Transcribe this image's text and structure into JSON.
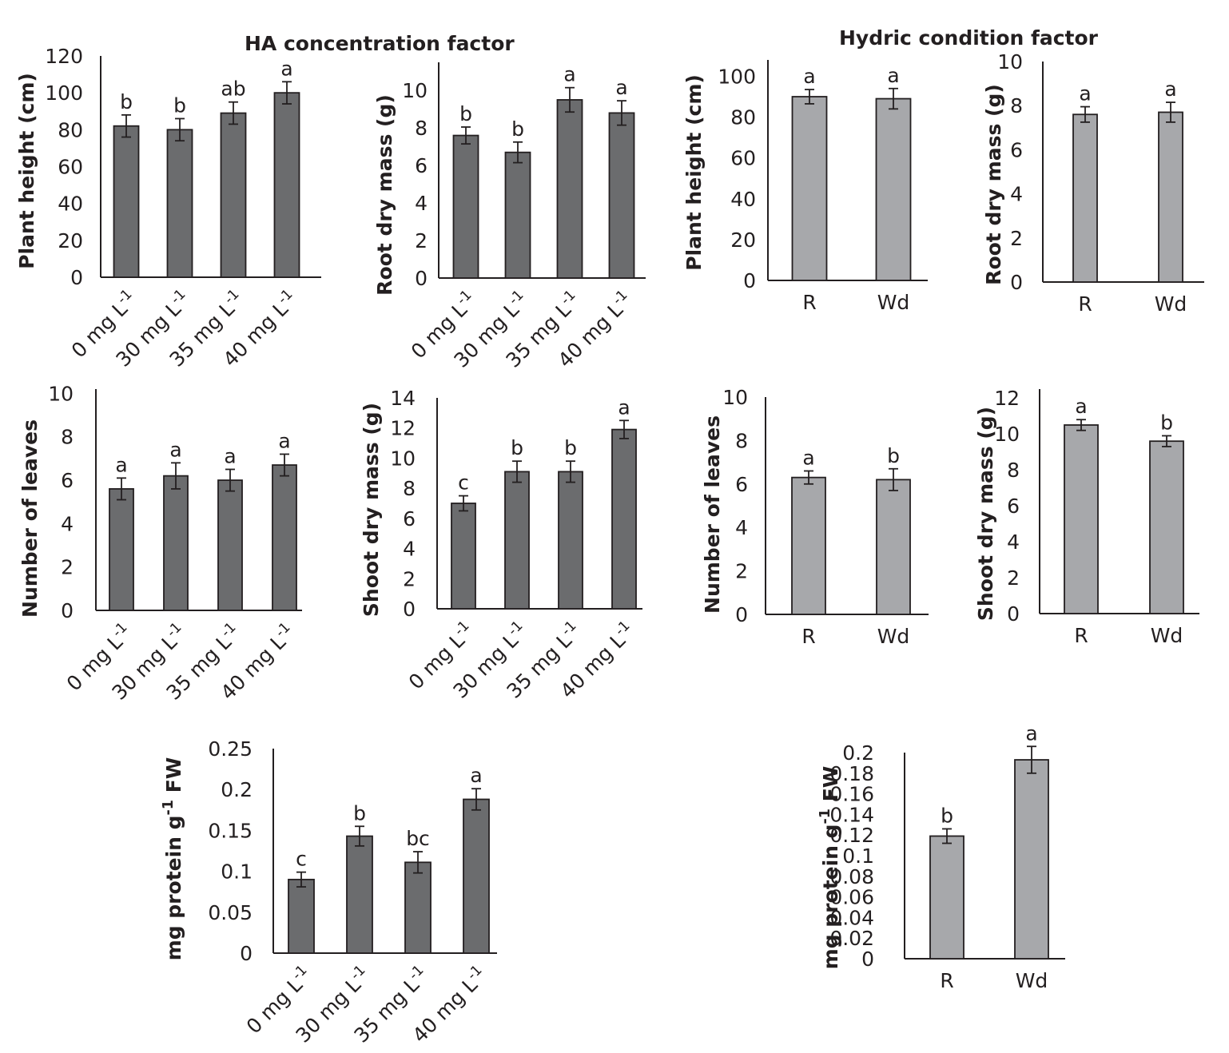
{
  "titles": {
    "ha": "HA concentration factor",
    "hydric": "Hydric condition factor"
  },
  "colors": {
    "ha_bar": "#6b6c6e",
    "hydric_bar": "#a7a8ab",
    "axis": "#231f20",
    "text": "#231f20"
  },
  "chart_data": [
    {
      "id": "ha-plant-height",
      "type": "bar",
      "group": "ha",
      "title": "",
      "ylabel": "Plant height (cm)",
      "xlabel": "",
      "categories": [
        "0 mg L^-1",
        "30 mg L^-1",
        "35 mg L^-1",
        "40 mg L^-1"
      ],
      "values": [
        82,
        80,
        89,
        100
      ],
      "errors": [
        6,
        6,
        6,
        6
      ],
      "letters": [
        "b",
        "b",
        "ab",
        "a"
      ],
      "ylim": [
        0,
        120
      ],
      "yticks": [
        0,
        20,
        40,
        60,
        80,
        100,
        120
      ]
    },
    {
      "id": "ha-root-dry-mass",
      "type": "bar",
      "group": "ha",
      "title": "",
      "ylabel": "Root dry mass (g)",
      "xlabel": "",
      "categories": [
        "0 mg L^-1",
        "30 mg L^-1",
        "35 mg L^-1",
        "40 mg L^-1"
      ],
      "values": [
        7.6,
        6.7,
        9.5,
        8.8
      ],
      "errors": [
        0.45,
        0.55,
        0.65,
        0.65
      ],
      "letters": [
        "b",
        "b",
        "a",
        "a"
      ],
      "ylim": [
        0,
        11.5
      ],
      "yticks": [
        0,
        2,
        4,
        6,
        8,
        10
      ]
    },
    {
      "id": "hydric-plant-height",
      "type": "bar",
      "group": "hydric",
      "title": "",
      "ylabel": "Plant height (cm)",
      "xlabel": "",
      "categories": [
        "R",
        "Wd"
      ],
      "values": [
        90,
        89
      ],
      "errors": [
        3.5,
        5
      ],
      "letters": [
        "a",
        "a"
      ],
      "ylim": [
        0,
        108
      ],
      "yticks": [
        0,
        20,
        40,
        60,
        80,
        100
      ]
    },
    {
      "id": "hydric-root-dry-mass",
      "type": "bar",
      "group": "hydric",
      "title": "",
      "ylabel": "Root dry mass (g)",
      "xlabel": "",
      "categories": [
        "R",
        "Wd"
      ],
      "values": [
        7.6,
        7.7
      ],
      "errors": [
        0.35,
        0.45
      ],
      "letters": [
        "a",
        "a"
      ],
      "ylim": [
        0,
        10
      ],
      "yticks": [
        0,
        2,
        4,
        6,
        8,
        10
      ]
    },
    {
      "id": "ha-number-of-leaves",
      "type": "bar",
      "group": "ha",
      "title": "",
      "ylabel": "Number of leaves",
      "xlabel": "",
      "categories": [
        "0 mg L^-1",
        "30 mg L^-1",
        "35 mg L^-1",
        "40 mg L^-1"
      ],
      "values": [
        5.6,
        6.2,
        6.0,
        6.7
      ],
      "errors": [
        0.5,
        0.6,
        0.5,
        0.5
      ],
      "letters": [
        "a",
        "a",
        "a",
        "a"
      ],
      "ylim": [
        0,
        10.2
      ],
      "yticks": [
        0,
        2,
        4,
        6,
        8,
        10
      ]
    },
    {
      "id": "ha-shoot-dry-mass",
      "type": "bar",
      "group": "ha",
      "title": "",
      "ylabel": "Shoot dry mass (g)",
      "xlabel": "",
      "categories": [
        "0 mg L^-1",
        "30 mg L^-1",
        "35 mg L^-1",
        "40 mg L^-1"
      ],
      "values": [
        7.0,
        9.1,
        9.1,
        11.9
      ],
      "errors": [
        0.5,
        0.7,
        0.7,
        0.6
      ],
      "letters": [
        "c",
        "b",
        "b",
        "a"
      ],
      "ylim": [
        0,
        14
      ],
      "yticks": [
        0,
        2,
        4,
        6,
        8,
        10,
        12,
        14
      ]
    },
    {
      "id": "hydric-number-of-leaves",
      "type": "bar",
      "group": "hydric",
      "title": "",
      "ylabel": "Number of leaves",
      "xlabel": "",
      "categories": [
        "R",
        "Wd"
      ],
      "values": [
        6.3,
        6.2
      ],
      "errors": [
        0.3,
        0.5
      ],
      "letters": [
        "a",
        "b"
      ],
      "ylim": [
        0,
        10
      ],
      "yticks": [
        0,
        2,
        4,
        6,
        8,
        10
      ]
    },
    {
      "id": "hydric-shoot-dry-mass",
      "type": "bar",
      "group": "hydric",
      "title": "",
      "ylabel": "Shoot dry mass (g)",
      "xlabel": "",
      "categories": [
        "R",
        "Wd"
      ],
      "values": [
        10.5,
        9.6
      ],
      "errors": [
        0.3,
        0.3
      ],
      "letters": [
        "a",
        "b"
      ],
      "ylim": [
        0,
        12.5
      ],
      "yticks": [
        0,
        2,
        4,
        6,
        8,
        10,
        12
      ]
    },
    {
      "id": "ha-protein",
      "type": "bar",
      "group": "ha",
      "title": "",
      "ylabel": "mg protein g^-1 FW",
      "xlabel": "",
      "categories": [
        "0 mg L^-1",
        "30 mg L^-1",
        "35 mg L^-1",
        "40 mg L^-1"
      ],
      "values": [
        0.09,
        0.143,
        0.111,
        0.188
      ],
      "errors": [
        0.009,
        0.012,
        0.013,
        0.013
      ],
      "letters": [
        "c",
        "b",
        "bc",
        "a"
      ],
      "ylim": [
        0,
        0.25
      ],
      "yticks": [
        "0",
        "0.05",
        "0.1",
        "0.15",
        "0.2",
        "0.25"
      ]
    },
    {
      "id": "hydric-protein",
      "type": "bar",
      "group": "hydric",
      "title": "",
      "ylabel": "mg protein g^-1 FW",
      "xlabel": "",
      "categories": [
        "R",
        "Wd"
      ],
      "values": [
        0.119,
        0.193
      ],
      "errors": [
        0.007,
        0.013
      ],
      "letters": [
        "b",
        "a"
      ],
      "ylim": [
        0,
        0.2
      ],
      "yticks": [
        "0",
        "0.02",
        "0.04",
        "0.06",
        "0.08",
        "0.1",
        "0.12",
        "0.14",
        "0.16",
        "0.18",
        "0.2"
      ]
    }
  ]
}
